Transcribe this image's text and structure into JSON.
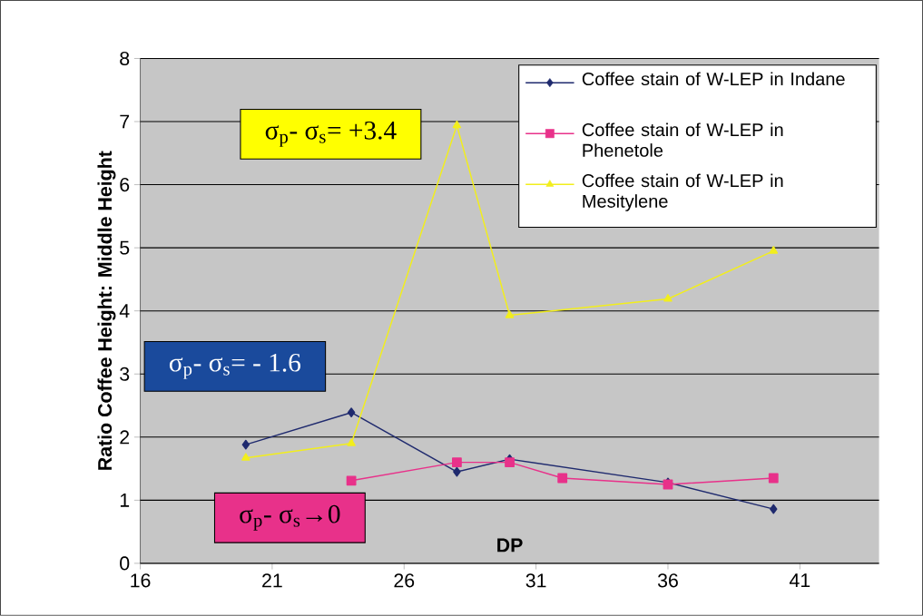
{
  "chart_data": {
    "type": "line",
    "xlabel": "DP",
    "ylabel": "Ratio Coffee Height: Middle Height",
    "xlim": [
      16,
      44
    ],
    "xticks": [
      16,
      21,
      26,
      31,
      36,
      41
    ],
    "ylim": [
      0,
      8
    ],
    "yticks": [
      0,
      1,
      2,
      3,
      4,
      5,
      6,
      7,
      8
    ],
    "grid": "y",
    "legend": "top right",
    "series": [
      {
        "name": "Coffee stain of W-LEP in Indane",
        "color": "#1f2a6e",
        "marker": "diamond",
        "x": [
          20,
          24,
          28,
          30,
          36,
          40
        ],
        "values": [
          1.88,
          2.39,
          1.45,
          1.65,
          1.28,
          0.86
        ]
      },
      {
        "name": "Coffee stain of W-LEP in Phenetole",
        "color": "#e8318a",
        "marker": "square",
        "x": [
          24,
          28,
          30,
          32,
          36,
          40
        ],
        "values": [
          1.31,
          1.6,
          1.6,
          1.35,
          1.25,
          1.35
        ]
      },
      {
        "name": "Coffee stain of W-LEP in Mesitylene",
        "color": "#f2ee1c",
        "marker": "triangle",
        "x": [
          20,
          24,
          28,
          30,
          36,
          40
        ],
        "values": [
          1.67,
          1.9,
          6.94,
          3.93,
          4.19,
          4.95
        ]
      }
    ],
    "annotations": [
      "σ$_{p}$- σ$_{s}$= +3.4",
      "σ$_{p}$- σ$_{s}$= - 1.6",
      "σ$_{p}$- σ$_{s}$→0"
    ]
  }
}
